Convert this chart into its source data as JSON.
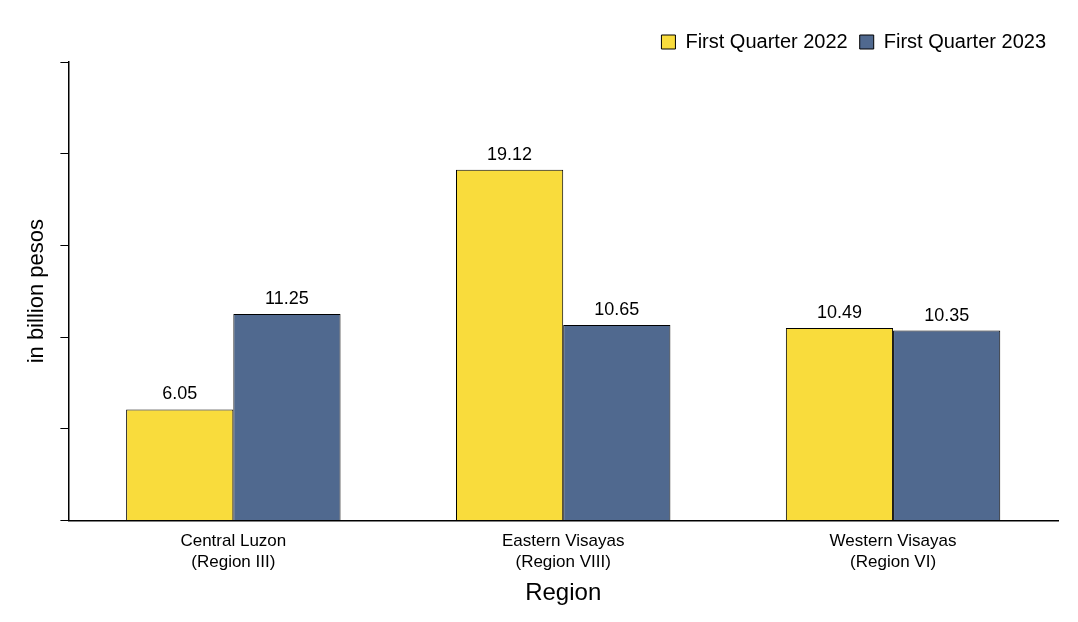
{
  "chart_data": {
    "type": "bar",
    "xlabel": "Region",
    "ylabel": "in billion pesos",
    "categories": [
      "Central Luzon\n(Region III)",
      "Eastern Visayas\n(Region VIII)",
      "Western Visayas\n(Region VI)"
    ],
    "series": [
      {
        "name": "First Quarter 2022",
        "color": "#f9dc3c",
        "values": [
          6.05,
          19.12,
          10.49
        ]
      },
      {
        "name": "First Quarter 2023",
        "color": "#50698f",
        "values": [
          11.25,
          10.65,
          10.35
        ]
      }
    ],
    "ylim": [
      0,
      25
    ],
    "yticks": [
      {
        "value": 0,
        "label": null
      },
      {
        "value": 5,
        "label": null
      },
      {
        "value": 10,
        "label": null
      },
      {
        "value": 15,
        "label": null
      },
      {
        "value": 20,
        "label": null
      },
      {
        "value": 25,
        "label": null
      }
    ],
    "data_labels": true,
    "grid": false,
    "legend": "top right"
  }
}
